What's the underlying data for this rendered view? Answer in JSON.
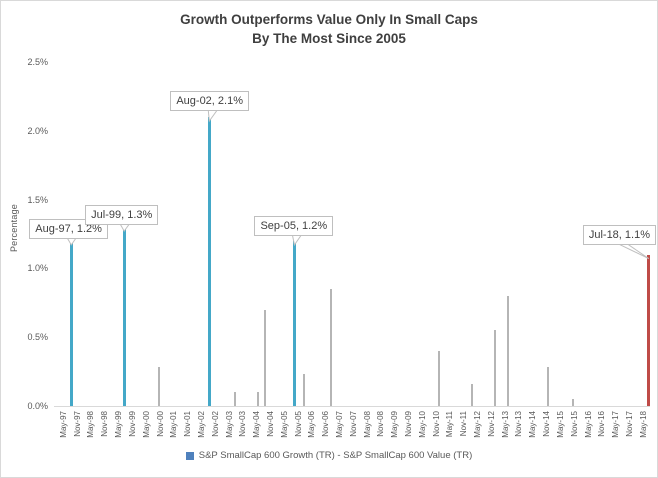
{
  "header": {
    "line1": "Growth Outperforms Value Only In Small Caps",
    "line2": "By The Most Since 2005"
  },
  "legend": {
    "label": "S&P SmallCap 600 Growth (TR) - S&P SmallCap 600 Value (TR)",
    "marker_color": "#4F81BD"
  },
  "colors": {
    "highlight": "#44A8C8",
    "current": "#BF4B47",
    "normal": "#B5B5B5",
    "axis_line": "#D9D9D9",
    "tick_text": "#595959",
    "title_text": "#3F3F3F",
    "callout_border": "#BFBFBF"
  },
  "annotations": [
    {
      "text": "Aug-97, 1.2%",
      "month": "Aug-97"
    },
    {
      "text": "Jul-99, 1.3%",
      "month": "Jul-99"
    },
    {
      "text": "Aug-02, 2.1%",
      "month": "Aug-02"
    },
    {
      "text": "Sep-05, 1.2%",
      "month": "Sep-05"
    },
    {
      "text": "Jul-18, 1.1%",
      "month": "Jul-18"
    }
  ],
  "chart_data": {
    "type": "bar",
    "title": "Growth Outperforms Value Only In Small Caps By The Most Since 2005",
    "xlabel": "",
    "ylabel": "Percentage",
    "ylim": [
      0,
      2.5
    ],
    "y_ticks": [
      "0.0%",
      "0.5%",
      "1.0%",
      "1.5%",
      "2.0%",
      "2.5%"
    ],
    "x_range": [
      "Jan-97",
      "Jul-18"
    ],
    "x_tick_labels": [
      "May-97",
      "Nov-97",
      "May-98",
      "Nov-98",
      "May-99",
      "Nov-99",
      "May-00",
      "Nov-00",
      "May-01",
      "Nov-01",
      "May-02",
      "Nov-02",
      "May-03",
      "Nov-03",
      "May-04",
      "Nov-04",
      "May-05",
      "Nov-05",
      "May-06",
      "Nov-06",
      "May-07",
      "Nov-07",
      "May-08",
      "Nov-08",
      "May-09",
      "Nov-09",
      "May-10",
      "Nov-10",
      "May-11",
      "Nov-11",
      "May-12",
      "Nov-12",
      "May-13",
      "Nov-13",
      "May-14",
      "Nov-14",
      "May-15",
      "Nov-15",
      "May-16",
      "Nov-16",
      "May-17",
      "Nov-17",
      "May-18"
    ],
    "grid": false,
    "legend_position": "bottom",
    "legend": [
      "S&P SmallCap 600 Growth (TR) - S&P SmallCap 600 Value (TR)"
    ],
    "series": [
      {
        "name": "S&P SmallCap 600 Growth (TR) - S&P SmallCap 600 Value (TR)",
        "points": [
          {
            "month": "Aug-97",
            "value": 1.2,
            "role": "highlight"
          },
          {
            "month": "Jul-99",
            "value": 1.3,
            "role": "highlight"
          },
          {
            "month": "Oct-00",
            "value": 0.28,
            "role": "normal"
          },
          {
            "month": "Aug-02",
            "value": 2.1,
            "role": "highlight"
          },
          {
            "month": "Jul-03",
            "value": 0.1,
            "role": "normal"
          },
          {
            "month": "May-04",
            "value": 0.1,
            "role": "normal"
          },
          {
            "month": "Aug-04",
            "value": 0.7,
            "role": "normal"
          },
          {
            "month": "Sep-05",
            "value": 1.2,
            "role": "highlight"
          },
          {
            "month": "Jan-06",
            "value": 0.23,
            "role": "normal"
          },
          {
            "month": "Jan-07",
            "value": 0.85,
            "role": "normal"
          },
          {
            "month": "Dec-10",
            "value": 0.4,
            "role": "normal"
          },
          {
            "month": "Feb-12",
            "value": 0.16,
            "role": "normal"
          },
          {
            "month": "Dec-12",
            "value": 0.55,
            "role": "normal"
          },
          {
            "month": "Jun-13",
            "value": 0.8,
            "role": "normal"
          },
          {
            "month": "Nov-14",
            "value": 0.28,
            "role": "normal"
          },
          {
            "month": "Oct-15",
            "value": 0.05,
            "role": "normal"
          },
          {
            "month": "Jul-18",
            "value": 1.1,
            "role": "current"
          }
        ]
      }
    ],
    "annotations": [
      "Aug-97, 1.2%",
      "Jul-99, 1.3%",
      "Aug-02, 2.1%",
      "Sep-05, 1.2%",
      "Jul-18, 1.1%"
    ]
  }
}
